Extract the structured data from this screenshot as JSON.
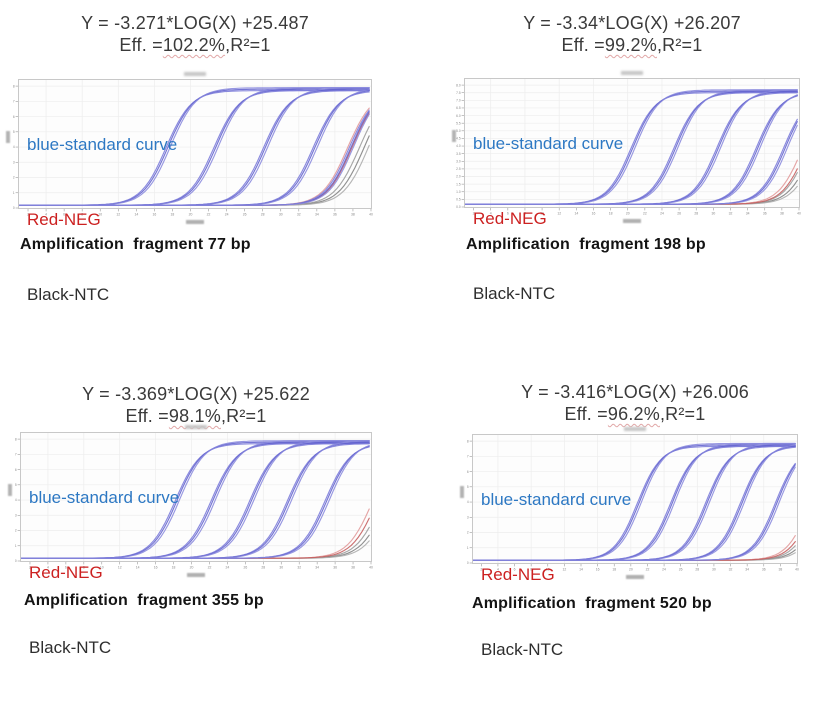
{
  "page": {
    "background": "#ffffff"
  },
  "legend": {
    "items": [
      {
        "label": "blue-standard curve",
        "color": "#2d78c3"
      },
      {
        "label": "Red-NEG",
        "color": "#cc2121"
      },
      {
        "label": "Black-NTC",
        "color": "#2e2e2e"
      }
    ]
  },
  "panels": [
    {
      "equation": "Y = -3.271*LOG(X) +25.487",
      "eff_prefix": "Eff. =",
      "eff_value": "102.2%",
      "eff_suffix": ",R²=1",
      "caption": "Amplification  fragment 77 bp"
    },
    {
      "equation": "Y = -3.34*LOG(X) +26.207",
      "eff_prefix": "Eff. =",
      "eff_value": "99.2%",
      "eff_suffix": ",R²=1",
      "caption": "Amplification  fragment 198 bp"
    },
    {
      "equation": "Y = -3.369*LOG(X) +25.622",
      "eff_prefix": "Eff. =",
      "eff_value": "98.1%",
      "eff_suffix": ",R²=1",
      "caption": "Amplification  fragment 355 bp"
    },
    {
      "equation": "Y = -3.416*LOG(X) +26.006",
      "eff_prefix": "Eff. =",
      "eff_value": "96.2%",
      "eff_suffix": ",R²=1",
      "caption": "Amplification  fragment 520 bp"
    }
  ],
  "chart_data": [
    {
      "type": "line",
      "fragment_bp": 77,
      "slope": -3.271,
      "intercept": 25.487,
      "efficiency_pct": 102.2,
      "r_squared": 1,
      "x_range": [
        1,
        40
      ],
      "y_range": [
        0,
        8.4
      ],
      "x_tick_step": 2,
      "x_grid_step": 4,
      "y_grid_step": 1,
      "y_ticks": [
        "8",
        "7",
        "6",
        "5",
        "4",
        "3",
        "2",
        "1",
        "0"
      ],
      "steepness": 1.4,
      "baseline": 0.18,
      "grid": true,
      "legend_position": "top-left",
      "series": [
        {
          "name": "standard curve",
          "role": "standard",
          "ct_values": [
            17.5,
            22.8,
            28.3,
            33.8,
            37.8
          ],
          "plateau": 7.8,
          "replicate_offsets": [
            -0.22,
            0,
            0.28
          ],
          "replicate_colors": [
            "#7a7ad9",
            "#6161ce",
            "#8787dd"
          ]
        },
        {
          "name": "NEG",
          "role": "neg",
          "ct_values": [
            37.4
          ],
          "plateau": 7.8,
          "replicate_offsets": [
            0,
            0.5
          ],
          "replicate_colors": [
            "#e19898",
            "#c45c5c"
          ]
        },
        {
          "name": "NTC",
          "role": "ntc",
          "ct_values": [
            38.7
          ],
          "plateau": 7.8,
          "replicate_offsets": [
            0,
            0.55,
            1.05
          ],
          "replicate_colors": [
            "#9a9a9a",
            "#7f7f7f",
            "#ababab"
          ]
        }
      ]
    },
    {
      "type": "line",
      "fragment_bp": 198,
      "slope": -3.34,
      "intercept": 26.207,
      "efficiency_pct": 99.2,
      "r_squared": 1,
      "x_range": [
        1,
        40
      ],
      "y_range": [
        0,
        8.4
      ],
      "x_tick_step": 2,
      "x_grid_step": 4,
      "y_grid_step": 0.5,
      "y_ticks": [
        "8.0",
        "7.5",
        "7.0",
        "6.5",
        "6.0",
        "5.5",
        "5.0",
        "4.5",
        "4.0",
        "3.5",
        "3.0",
        "2.5",
        "2.0",
        "1.5",
        "1.0",
        "0.5",
        "0.0"
      ],
      "steepness": 1.4,
      "baseline": 0.18,
      "grid": true,
      "legend_position": "top-left",
      "series": [
        {
          "name": "standard curve",
          "role": "standard",
          "ct_values": [
            20.6,
            25.6,
            30.6,
            35.2,
            38.4
          ],
          "plateau": 7.6,
          "replicate_offsets": [
            -0.22,
            0,
            0.28
          ],
          "replicate_colors": [
            "#7a7ad9",
            "#6161ce",
            "#8787dd"
          ]
        },
        {
          "name": "NEG",
          "role": "neg",
          "ct_values": [
            40.4
          ],
          "plateau": 7.6,
          "replicate_offsets": [
            0,
            0.5
          ],
          "replicate_colors": [
            "#e19898",
            "#c45c5c"
          ]
        },
        {
          "name": "NTC",
          "role": "ntc",
          "ct_values": [
            41.1
          ],
          "plateau": 7.6,
          "replicate_offsets": [
            0,
            0.55,
            1.05
          ],
          "replicate_colors": [
            "#9a9a9a",
            "#7f7f7f",
            "#ababab"
          ]
        }
      ]
    },
    {
      "type": "line",
      "fragment_bp": 355,
      "slope": -3.369,
      "intercept": 25.622,
      "efficiency_pct": 98.1,
      "r_squared": 1,
      "x_range": [
        1,
        40
      ],
      "y_range": [
        0,
        8.4
      ],
      "x_tick_step": 2,
      "x_grid_step": 4,
      "y_grid_step": 1,
      "y_ticks": [
        "8",
        "7",
        "6",
        "5",
        "4",
        "3",
        "2",
        "1",
        "0"
      ],
      "steepness": 1.4,
      "baseline": 0.18,
      "grid": true,
      "legend_position": "top-left",
      "series": [
        {
          "name": "standard curve",
          "role": "standard",
          "ct_values": [
            18.4,
            22.4,
            26.7,
            30.9,
            35.1
          ],
          "plateau": 7.8,
          "replicate_offsets": [
            -0.22,
            0,
            0.28
          ],
          "replicate_colors": [
            "#7a7ad9",
            "#6161ce",
            "#8787dd"
          ]
        },
        {
          "name": "NEG",
          "role": "neg",
          "ct_values": [
            40.2
          ],
          "plateau": 7.8,
          "replicate_offsets": [
            0,
            0.5
          ],
          "replicate_colors": [
            "#e19898",
            "#c45c5c"
          ]
        },
        {
          "name": "NTC",
          "role": "ntc",
          "ct_values": [
            41.2
          ],
          "plateau": 7.8,
          "replicate_offsets": [
            0,
            0.55,
            1.05
          ],
          "replicate_colors": [
            "#9a9a9a",
            "#7f7f7f",
            "#ababab"
          ]
        }
      ]
    },
    {
      "type": "line",
      "fragment_bp": 520,
      "slope": -3.416,
      "intercept": 26.006,
      "efficiency_pct": 96.2,
      "r_squared": 1,
      "x_range": [
        1,
        40
      ],
      "y_range": [
        0,
        8.4
      ],
      "x_tick_step": 2,
      "x_grid_step": 4,
      "y_grid_step": 1,
      "y_ticks": [
        "8",
        "7",
        "6",
        "5",
        "4",
        "3",
        "2",
        "1",
        "0"
      ],
      "steepness": 1.4,
      "baseline": 0.18,
      "grid": true,
      "legend_position": "top-left",
      "series": [
        {
          "name": "standard curve",
          "role": "standard",
          "ct_values": [
            21.0,
            25.0,
            29.2,
            33.4,
            37.6
          ],
          "plateau": 7.75,
          "replicate_offsets": [
            -0.22,
            0,
            0.28
          ],
          "replicate_colors": [
            "#7a7ad9",
            "#6161ce",
            "#8787dd"
          ]
        },
        {
          "name": "NEG",
          "role": "neg",
          "ct_values": [
            41.6
          ],
          "plateau": 7.75,
          "replicate_offsets": [
            0,
            0.5
          ],
          "replicate_colors": [
            "#e19898",
            "#c45c5c"
          ]
        },
        {
          "name": "NTC",
          "role": "ntc",
          "ct_values": [
            42.5
          ],
          "plateau": 7.75,
          "replicate_offsets": [
            0,
            0.55,
            1.05
          ],
          "replicate_colors": [
            "#9a9a9a",
            "#7f7f7f",
            "#ababab"
          ]
        }
      ]
    }
  ]
}
